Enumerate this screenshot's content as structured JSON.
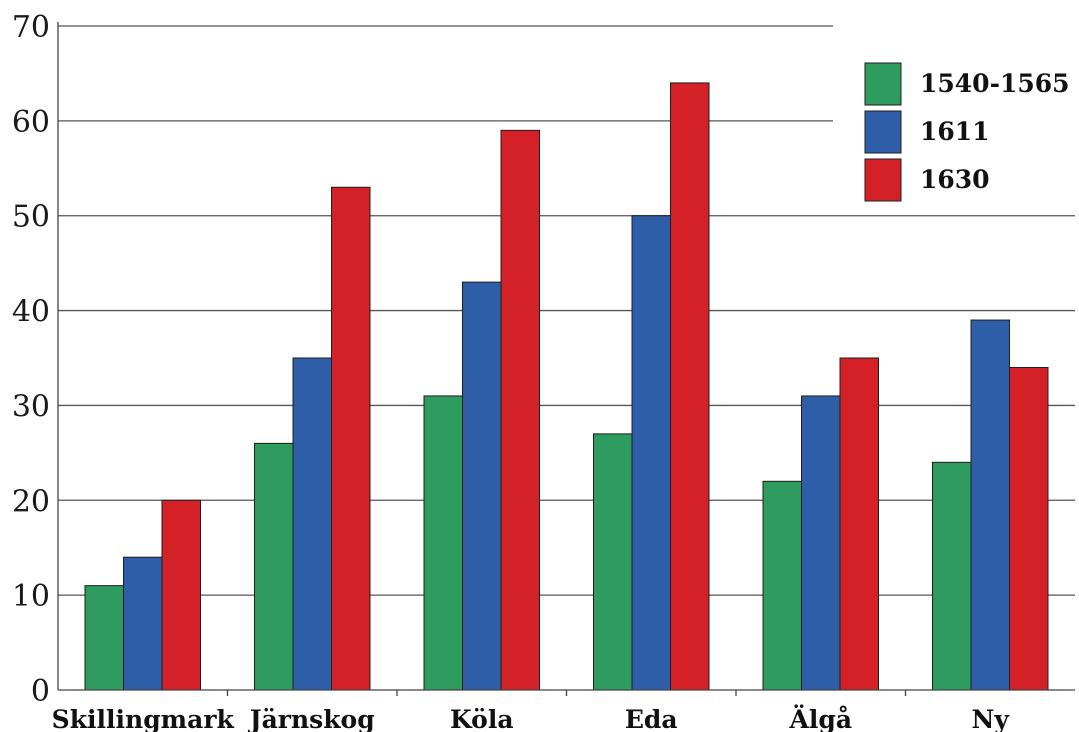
{
  "chart_data": {
    "type": "bar",
    "categories": [
      "Skillingmark",
      "Järnskog",
      "Köla",
      "Eda",
      "Älgå",
      "Ny"
    ],
    "series": [
      {
        "name": "1540-1565",
        "color": "#2e9b5f",
        "values": [
          11,
          26,
          31,
          27,
          22,
          24
        ]
      },
      {
        "name": "1611",
        "color": "#2f5ea8",
        "values": [
          14,
          35,
          43,
          50,
          31,
          39
        ]
      },
      {
        "name": "1630",
        "color": "#d42127",
        "values": [
          20,
          53,
          59,
          64,
          35,
          34
        ]
      }
    ],
    "title": "",
    "xlabel": "",
    "ylabel": "",
    "ylim": [
      0,
      70
    ],
    "yticks": [
      "0",
      "10",
      "20",
      "30",
      "40",
      "50",
      "60",
      "70"
    ],
    "grid": true,
    "legend_position": "top-right"
  }
}
